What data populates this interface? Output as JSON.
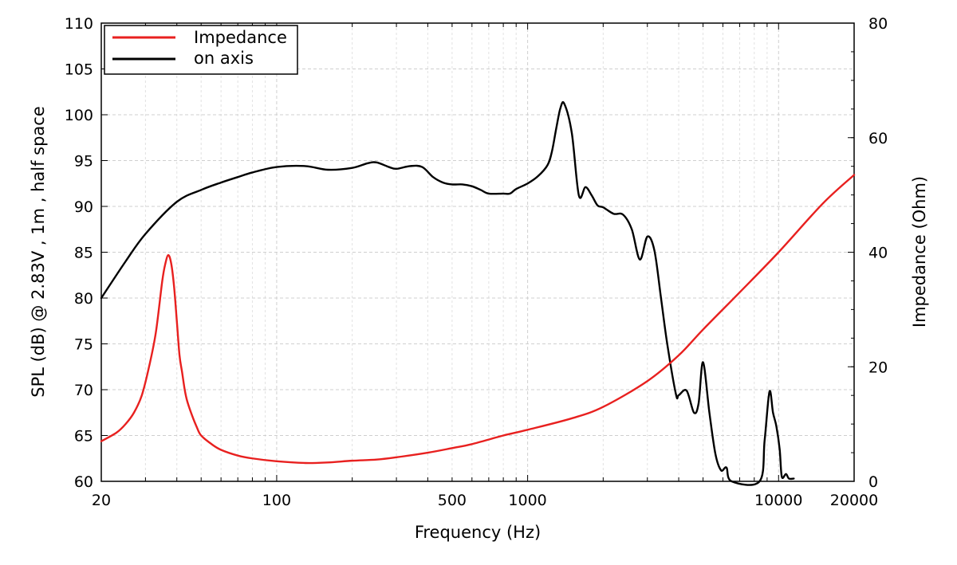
{
  "chart_data": {
    "type": "line",
    "xlabel": "Frequency (Hz)",
    "ylabel": "SPL (dB) @ 2.83V , 1m , half space",
    "y2label": "Impedance (Ohm)",
    "x_scale": "log",
    "xlim": [
      20,
      20000
    ],
    "ylim": [
      60,
      110
    ],
    "y2lim": [
      0,
      80
    ],
    "grid": true,
    "legend_position": "top-left",
    "x_ticks": [
      "20",
      "100",
      "500",
      "1000",
      "10000",
      "20000"
    ],
    "y_ticks": [
      "60",
      "65",
      "70",
      "75",
      "80",
      "85",
      "90",
      "95",
      "100",
      "105",
      "110"
    ],
    "y2_ticks": [
      "0",
      "20",
      "40",
      "60",
      "80"
    ],
    "series": [
      {
        "name": "Impedance",
        "axis": "right",
        "color": "#e8201f",
        "x": [
          20,
          23,
          25,
          27,
          29,
          31,
          33,
          35,
          36,
          37,
          38,
          39,
          40,
          41,
          42,
          43,
          44,
          46,
          48,
          50,
          55,
          60,
          70,
          80,
          100,
          130,
          160,
          200,
          250,
          300,
          400,
          500,
          600,
          800,
          1000,
          1500,
          2000,
          3000,
          4000,
          5000,
          7000,
          10000,
          15000,
          20000
        ],
        "values": [
          7,
          8.5,
          10,
          12,
          15,
          20,
          26,
          35,
          38,
          39.5,
          38,
          34,
          28,
          22,
          19,
          16,
          14,
          11.5,
          9.5,
          8,
          6.5,
          5.5,
          4.5,
          4,
          3.5,
          3.2,
          3.3,
          3.6,
          3.8,
          4.2,
          5,
          5.8,
          6.5,
          8,
          9,
          11,
          13,
          17.5,
          22,
          26.5,
          33,
          40,
          48.5,
          53.5
        ]
      },
      {
        "name": "on axis",
        "axis": "left",
        "color": "#000000",
        "x": [
          20,
          25,
          30,
          40,
          50,
          60,
          70,
          80,
          100,
          130,
          160,
          200,
          230,
          250,
          280,
          300,
          340,
          380,
          420,
          460,
          500,
          550,
          600,
          650,
          700,
          800,
          850,
          900,
          1000,
          1100,
          1200,
          1250,
          1300,
          1350,
          1400,
          1500,
          1600,
          1700,
          1800,
          1900,
          2000,
          2200,
          2400,
          2600,
          2800,
          3000,
          3200,
          3400,
          3600,
          3900,
          4000,
          4300,
          4600,
          4800,
          5000,
          5300,
          5600,
          5900,
          6200,
          6500,
          8400,
          8800,
          9200,
          9500,
          9800,
          10100,
          10300,
          10700,
          11000,
          11500
        ],
        "values": [
          80,
          84,
          87,
          90.5,
          91.8,
          92.6,
          93.2,
          93.7,
          94.3,
          94.4,
          94,
          94.2,
          94.7,
          94.8,
          94.3,
          94.1,
          94.4,
          94.3,
          93.2,
          92.6,
          92.4,
          92.4,
          92.2,
          91.8,
          91.4,
          91.4,
          91.4,
          91.9,
          92.5,
          93.3,
          94.5,
          96,
          98.5,
          100.7,
          101.2,
          98,
          91.2,
          92.1,
          91.2,
          90.1,
          89.9,
          89.2,
          89.1,
          87.5,
          84.2,
          86.7,
          85.2,
          80,
          75,
          69.5,
          69.4,
          69.9,
          67.5,
          68.5,
          73,
          67.5,
          63,
          61.2,
          61.5,
          60,
          60,
          64.5,
          69.8,
          67.5,
          66,
          63.5,
          60.5,
          60.8,
          60.3,
          60.3
        ]
      }
    ]
  }
}
